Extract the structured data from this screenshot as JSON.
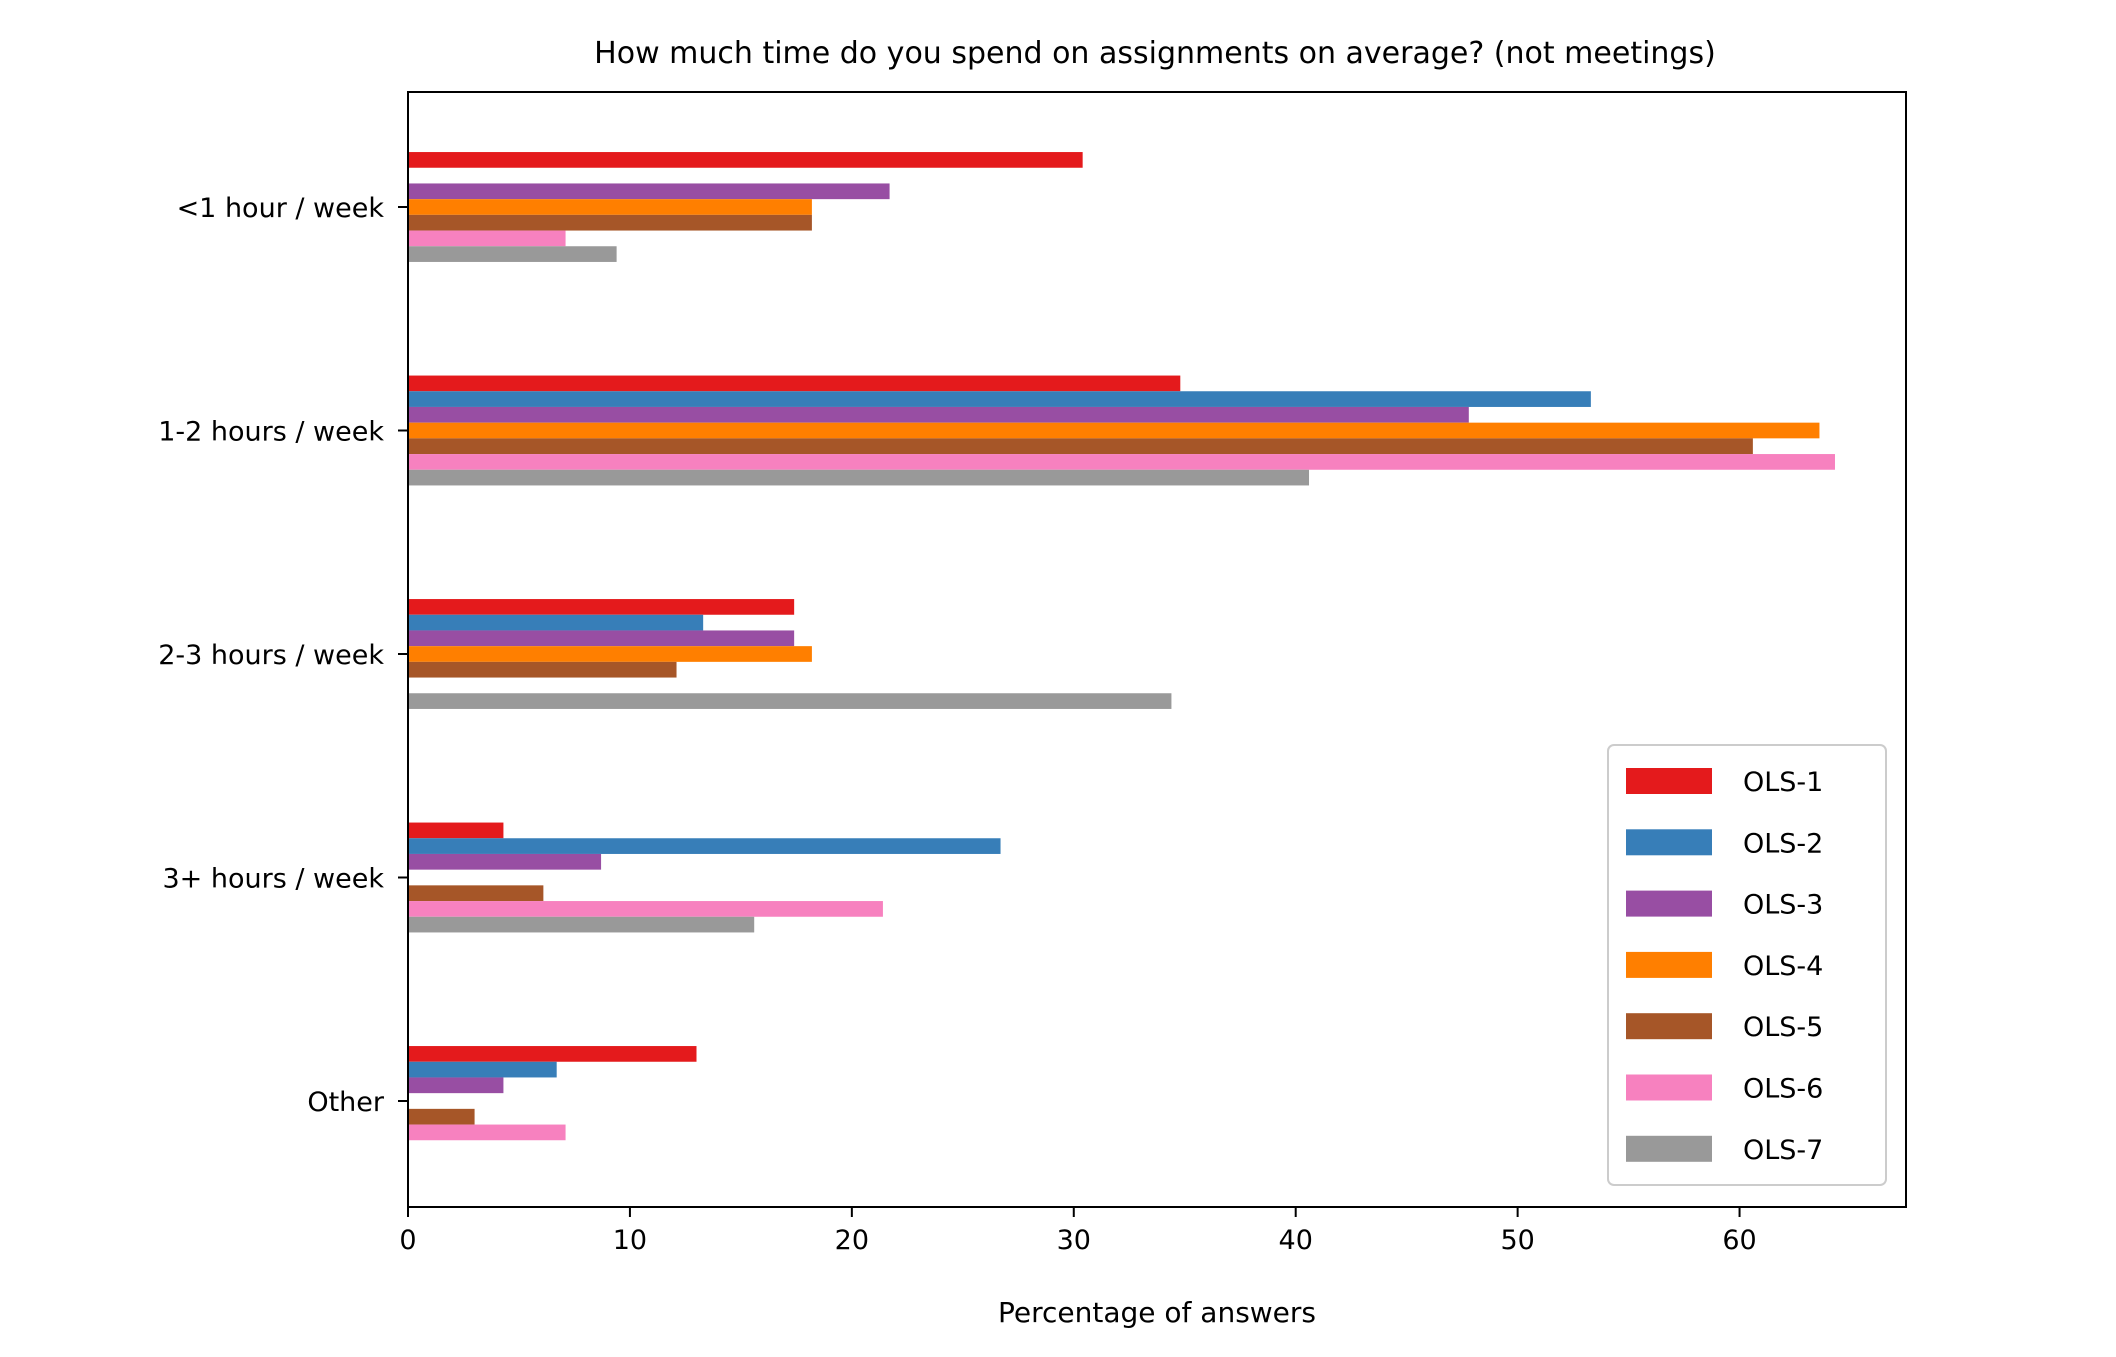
{
  "chart_data": {
    "type": "bar",
    "orientation": "horizontal",
    "title": "How much time do you spend on assignments on average? (not meetings)",
    "xlabel": "Percentage of answers",
    "ylabel": "",
    "xlim": [
      0,
      67.5
    ],
    "xticks": [
      0,
      10,
      20,
      30,
      40,
      50,
      60
    ],
    "grid": false,
    "legend_position": "lower-right",
    "categories": [
      "<1 hour / week",
      "1-2 hours / week",
      "2-3 hours / week",
      "3+ hours / week",
      "Other"
    ],
    "series": [
      {
        "name": "OLS-1",
        "color": "#e41a1c",
        "values": [
          30.4,
          34.8,
          17.4,
          4.3,
          13.0
        ]
      },
      {
        "name": "OLS-2",
        "color": "#377eb8",
        "values": [
          0,
          53.3,
          13.3,
          26.7,
          6.7
        ]
      },
      {
        "name": "OLS-3",
        "color": "#984ea3",
        "values": [
          21.7,
          47.8,
          17.4,
          8.7,
          4.3
        ]
      },
      {
        "name": "OLS-4",
        "color": "#ff7f00",
        "values": [
          18.2,
          63.6,
          18.2,
          0,
          0
        ]
      },
      {
        "name": "OLS-5",
        "color": "#a65628",
        "values": [
          18.2,
          60.6,
          12.1,
          6.1,
          3.0
        ]
      },
      {
        "name": "OLS-6",
        "color": "#f781bf",
        "values": [
          7.1,
          64.3,
          0,
          21.4,
          7.1
        ]
      },
      {
        "name": "OLS-7",
        "color": "#999999",
        "values": [
          9.4,
          40.6,
          34.4,
          15.6,
          0
        ]
      }
    ]
  }
}
